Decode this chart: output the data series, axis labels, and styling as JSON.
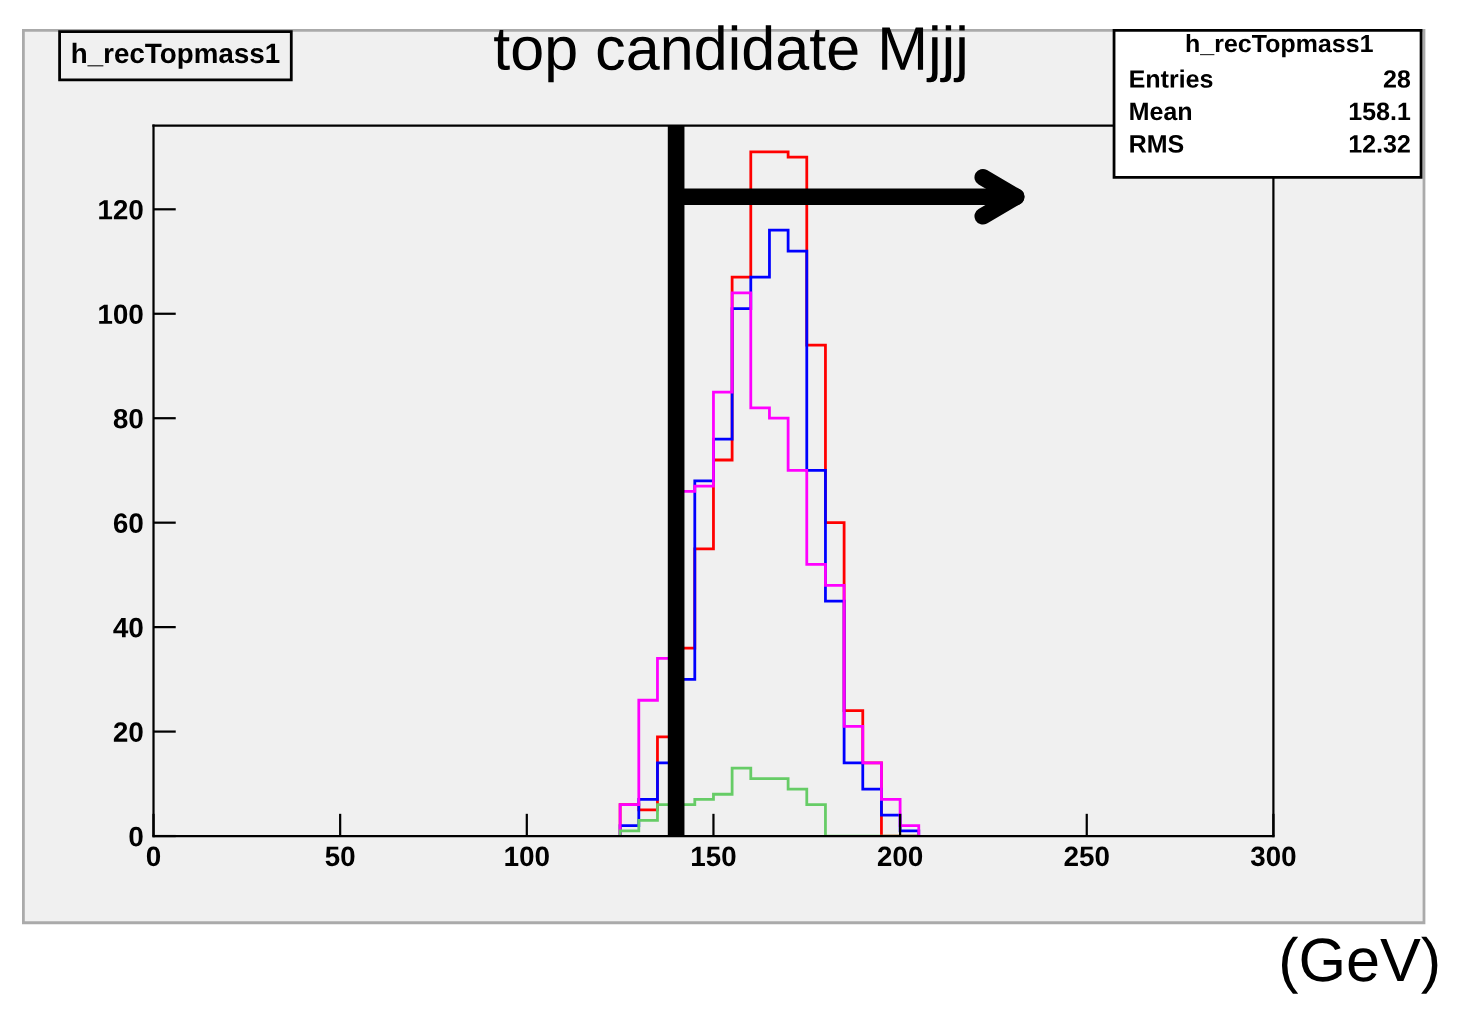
{
  "chart_data": {
    "type": "histogram",
    "title": "top candidate Mjjj",
    "subtitle": "h_recTopmass1",
    "xlabel": "(GeV)",
    "bins": [
      125,
      130,
      135,
      140,
      145,
      150,
      155,
      160,
      165,
      170,
      175,
      180,
      185,
      190,
      195,
      200,
      205
    ],
    "series": [
      {
        "color": "#ff0000",
        "values": [
          6,
          5,
          19,
          36,
          55,
          72,
          107,
          131,
          131,
          130,
          94,
          60,
          24,
          14,
          0,
          0
        ]
      },
      {
        "color": "#0000ff",
        "values": [
          2,
          7,
          14,
          30,
          68,
          76,
          101,
          107,
          116,
          112,
          70,
          45,
          14,
          9,
          4,
          1
        ]
      },
      {
        "color": "#ff00ff",
        "values": [
          6,
          26,
          34,
          66,
          67,
          85,
          104,
          82,
          80,
          70,
          52,
          48,
          21,
          14,
          7,
          2
        ]
      },
      {
        "color": "#66cc66",
        "values": [
          1,
          3,
          6,
          6,
          7,
          8,
          13,
          11,
          11,
          9,
          6,
          0,
          0,
          0,
          0,
          0
        ]
      }
    ],
    "xlim": [
      0,
      300
    ],
    "xticks": [
      0,
      50,
      100,
      150,
      200,
      250,
      300
    ],
    "ylim": [
      0,
      136
    ],
    "yticks": [
      0,
      20,
      40,
      60,
      80,
      100,
      120
    ],
    "ref_lines": [
      {
        "axis": "x",
        "value": 140,
        "color": "#000000"
      }
    ],
    "annotations": [
      "h_recTopmass1",
      "Entries 28",
      "Mean 158.1",
      "RMS 12.32"
    ],
    "grid": false
  }
}
